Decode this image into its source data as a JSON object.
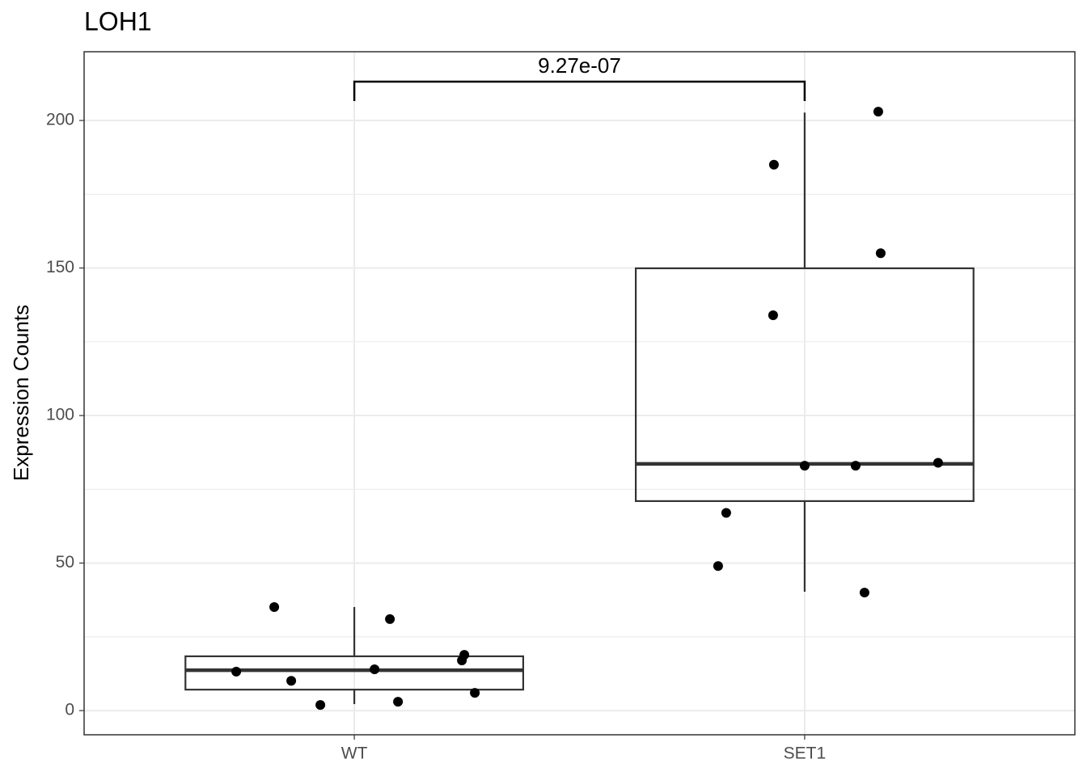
{
  "chart_data": {
    "type": "box",
    "title": "LOH1",
    "y_label": "Expression Counts",
    "categories": [
      "WT",
      "SET1"
    ],
    "boxes": [
      {
        "whisker_low": 2.2,
        "q1": 7.1,
        "median": 13.7,
        "q3": 18.4,
        "whisker_high": 35.1
      },
      {
        "whisker_low": 40.3,
        "q1": 71,
        "median": 83.6,
        "q3": 149.9,
        "whisker_high": 202.7
      }
    ],
    "points": [
      [
        13.2,
        35.1,
        10.1,
        1.9,
        14.0,
        31.0,
        3.0,
        17.0,
        18.9,
        6.0
      ],
      [
        203,
        185,
        155,
        134,
        83,
        83,
        84,
        67,
        49,
        40
      ]
    ],
    "point_color": "#000000",
    "box_color": "#333333",
    "annotation": "9.27e-07",
    "ylim": [
      -8.2,
      223.3
    ],
    "yticks": [
      0,
      50,
      100,
      150,
      200
    ],
    "grid": true
  }
}
